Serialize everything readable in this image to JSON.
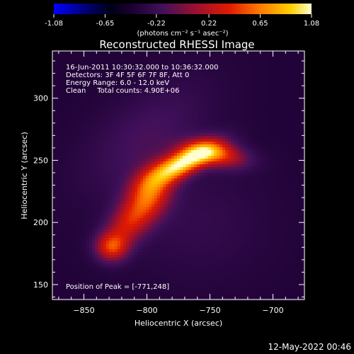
{
  "chart_data": {
    "type": "heatmap",
    "title": "Reconstructed RHESSI Image",
    "xlabel": "Heliocentric X (arcsec)",
    "ylabel": "Heliocentric Y (arcsec)",
    "xlim": [
      -875,
      -675
    ],
    "ylim": [
      138,
      338
    ],
    "x_ticks": [
      -850,
      -800,
      -750,
      -700
    ],
    "y_ticks": [
      150,
      200,
      250,
      300
    ],
    "colorbar": {
      "min": -1.08,
      "max": 1.08,
      "tick_values": [
        -1.08,
        -0.65,
        -0.22,
        0.22,
        0.65,
        1.08
      ],
      "tick_labels": [
        "-1.08",
        "-0.65",
        "-0.22",
        "0.22",
        "0.65",
        "1.08"
      ],
      "unit_label": "(photons cm⁻² s⁻¹ asec⁻²)"
    },
    "info_lines": [
      "16-Jun-2011 10:30:32.000 to 10:36:32.000",
      "Detectors: 3F 4F 5F 6F 7F 8F, Att 0",
      "Energy Range: 6.0 - 12.0 keV",
      "Clean     Total counts: 4.90E+06"
    ],
    "peak_label": "Position of Peak = [-771,248]",
    "peak": {
      "x": -771,
      "y": 248,
      "value": 1.08
    },
    "background_value": -0.38,
    "sources": [
      {
        "x": -771,
        "y": 248,
        "sx": 20,
        "sy": 7,
        "angle_deg": 28,
        "amp": 1.3
      },
      {
        "x": -745,
        "y": 255,
        "sx": 17,
        "sy": 7,
        "angle_deg": -10,
        "amp": 0.8
      },
      {
        "x": -798,
        "y": 222,
        "sx": 16,
        "sy": 11,
        "angle_deg": 60,
        "amp": 0.85
      },
      {
        "x": -816,
        "y": 198,
        "sx": 14,
        "sy": 10,
        "angle_deg": 50,
        "amp": 0.55
      },
      {
        "x": -828,
        "y": 180,
        "sx": 9,
        "sy": 8,
        "angle_deg": 0,
        "amp": 0.75
      },
      {
        "x": -800,
        "y": 270,
        "sx": 42,
        "sy": 22,
        "angle_deg": 40,
        "amp": 0.22
      },
      {
        "x": -760,
        "y": 200,
        "sx": 38,
        "sy": 32,
        "angle_deg": 0,
        "amp": 0.12
      }
    ]
  },
  "footer": {
    "timestamp": "12-May-2022 00:46"
  }
}
